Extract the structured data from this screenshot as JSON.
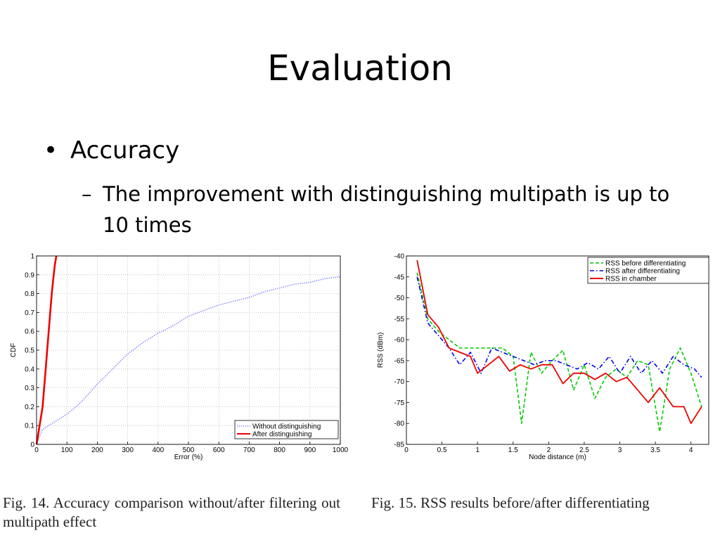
{
  "slide": {
    "title": "Evaluation",
    "bullet": "Accuracy",
    "sub_dash": "–",
    "sub_bullet": "The improvement with distinguishing multipath is up to 10 times"
  },
  "figures": [
    {
      "caption": "Fig. 14.    Accuracy comparison without/after filtering out multipath effect"
    },
    {
      "caption": "Fig. 15.   RSS results before/after differentiating"
    }
  ],
  "chart_data": [
    {
      "type": "line",
      "title": "",
      "xlabel": "Error (%)",
      "ylabel": "CDF",
      "xlim": [
        0,
        1000
      ],
      "ylim": [
        0,
        1
      ],
      "xticks": [
        0,
        100,
        200,
        300,
        400,
        500,
        600,
        700,
        800,
        900,
        1000
      ],
      "yticks": [
        0,
        0.1,
        0.2,
        0.3,
        0.4,
        0.5,
        0.6,
        0.7,
        0.8,
        0.9,
        1
      ],
      "grid": true,
      "legend_position": "bottom-right",
      "series": [
        {
          "name": "Without distinguishing",
          "color": "#7878ff",
          "style": "dotted",
          "x": [
            0,
            10,
            20,
            40,
            60,
            80,
            100,
            130,
            150,
            200,
            250,
            300,
            350,
            400,
            450,
            500,
            550,
            600,
            650,
            700,
            750,
            800,
            850,
            900,
            950,
            1000
          ],
          "y": [
            0,
            0.04,
            0.08,
            0.1,
            0.12,
            0.14,
            0.16,
            0.2,
            0.23,
            0.32,
            0.4,
            0.48,
            0.54,
            0.59,
            0.63,
            0.68,
            0.71,
            0.74,
            0.76,
            0.78,
            0.81,
            0.83,
            0.85,
            0.86,
            0.88,
            0.89
          ]
        },
        {
          "name": "After distinguishing",
          "color": "#ee0000",
          "style": "solid",
          "x": [
            0,
            5,
            10,
            15,
            20,
            25,
            30,
            35,
            40,
            45,
            50,
            55,
            60,
            65
          ],
          "y": [
            0,
            0.05,
            0.1,
            0.15,
            0.2,
            0.3,
            0.4,
            0.5,
            0.6,
            0.7,
            0.8,
            0.88,
            0.95,
            1.0
          ]
        }
      ]
    },
    {
      "type": "line",
      "title": "",
      "xlabel": "Node distance (m)",
      "ylabel": "RSS (dBm)",
      "xlim": [
        0,
        4.25
      ],
      "ylim": [
        -85,
        -40
      ],
      "xticks": [
        0,
        0.5,
        1,
        1.5,
        2,
        2.5,
        3,
        3.5,
        4
      ],
      "yticks": [
        -40,
        -45,
        -50,
        -55,
        -60,
        -65,
        -70,
        -75,
        -80,
        -85
      ],
      "grid": false,
      "legend_position": "top-right",
      "series": [
        {
          "name": "RSS before differentiating",
          "color": "#00cc00",
          "style": "dashed",
          "x": [
            0.15,
            0.3,
            0.45,
            0.6,
            0.75,
            0.9,
            1.05,
            1.2,
            1.35,
            1.5,
            1.62,
            1.75,
            1.9,
            2.05,
            2.2,
            2.35,
            2.5,
            2.65,
            2.8,
            2.95,
            3.1,
            3.25,
            3.4,
            3.56,
            3.7,
            3.85,
            4.0,
            4.15
          ],
          "y": [
            -44,
            -55,
            -58,
            -60,
            -62,
            -62,
            -62,
            -62,
            -62,
            -64,
            -80,
            -63,
            -68,
            -65,
            -62.5,
            -72,
            -66,
            -74,
            -69,
            -67,
            -69,
            -65,
            -66,
            -82,
            -67,
            -62,
            -68,
            -76
          ]
        },
        {
          "name": "RSS after differentiating",
          "color": "#0000ee",
          "style": "dashdot",
          "x": [
            0.15,
            0.3,
            0.45,
            0.6,
            0.75,
            0.9,
            1.05,
            1.2,
            1.35,
            1.5,
            1.65,
            1.8,
            1.95,
            2.1,
            2.25,
            2.4,
            2.55,
            2.7,
            2.85,
            3.0,
            3.15,
            3.3,
            3.45,
            3.6,
            3.75,
            3.9,
            4.05,
            4.15
          ],
          "y": [
            -45,
            -56,
            -59,
            -62,
            -66,
            -63,
            -68,
            -62,
            -63,
            -64,
            -65,
            -66,
            -65,
            -65,
            -66,
            -67,
            -65.5,
            -67,
            -64,
            -68,
            -64,
            -68,
            -65,
            -68,
            -64,
            -66,
            -67,
            -69
          ]
        },
        {
          "name": "RSS in chamber",
          "color": "#ee0000",
          "style": "solid",
          "x": [
            0.15,
            0.3,
            0.45,
            0.6,
            0.75,
            0.9,
            1.0,
            1.15,
            1.3,
            1.45,
            1.6,
            1.75,
            1.9,
            2.05,
            2.2,
            2.35,
            2.5,
            2.65,
            2.8,
            2.95,
            3.1,
            3.25,
            3.4,
            3.56,
            3.75,
            3.9,
            4.0,
            4.15
          ],
          "y": [
            -41,
            -54,
            -57,
            -62,
            -63,
            -64,
            -68,
            -66,
            -64,
            -67.5,
            -66,
            -67,
            -66,
            -66,
            -70.5,
            -68,
            -68,
            -69.5,
            -68,
            -70,
            -69,
            -72,
            -75,
            -71.5,
            -76,
            -76,
            -80,
            -76
          ]
        }
      ]
    }
  ]
}
